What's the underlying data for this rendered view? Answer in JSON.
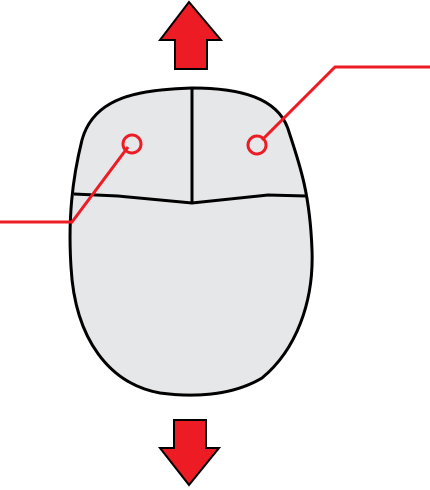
{
  "diagram": {
    "subject": "mouse",
    "colors": {
      "body_fill": "#e6e7e9",
      "outline": "#000000",
      "arrow_fill": "#ed1c24",
      "arrow_stroke": "#000000",
      "callout": "#ed1c24"
    },
    "icons": {
      "up_arrow": "arrow-up-icon",
      "down_arrow": "arrow-down-icon"
    },
    "parts": [
      "left-button",
      "right-button",
      "palm-rest"
    ]
  }
}
